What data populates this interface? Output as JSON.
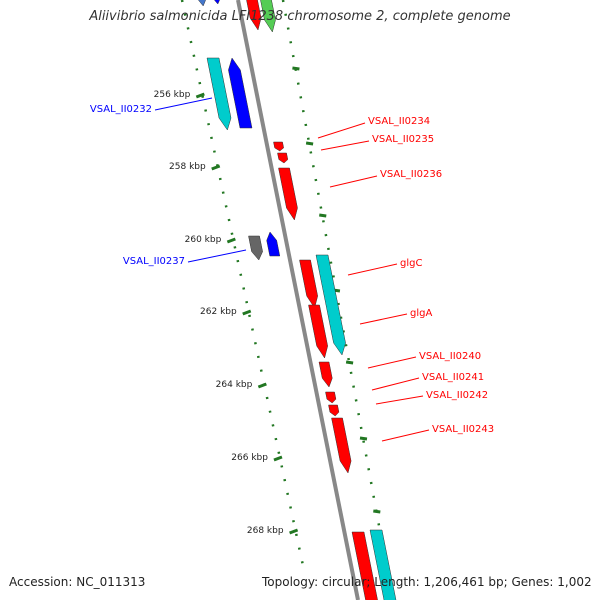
{
  "title": "Aliivibrio salmonicida LFI1238 chromosome 2, complete genome",
  "footer": {
    "accession": "Accession: NC_011313",
    "topology": "Topology: circular; Length: 1,206,461 bp; Genes: 1,002"
  },
  "colors": {
    "red": "#ff0000",
    "blue": "#0000ff",
    "cyan": "#00cccc",
    "gray": "#666666",
    "green": "#22aa22",
    "tick": "#227722",
    "backbone": "#888888"
  },
  "ticks": [
    "256 kbp",
    "258 kbp",
    "260 kbp",
    "262 kbp",
    "264 kbp",
    "266 kbp",
    "268 kbp"
  ],
  "genes": [
    {
      "label": "VSAL_II0232",
      "color": "blue"
    },
    {
      "label": "VSAL_II0234",
      "color": "red"
    },
    {
      "label": "VSAL_II0235",
      "color": "red"
    },
    {
      "label": "VSAL_II0236",
      "color": "red"
    },
    {
      "label": "VSAL_II0237",
      "color": "blue"
    },
    {
      "label": "glgC",
      "color": "red"
    },
    {
      "label": "glgA",
      "color": "red"
    },
    {
      "label": "VSAL_II0240",
      "color": "red"
    },
    {
      "label": "VSAL_II0241",
      "color": "red"
    },
    {
      "label": "VSAL_II0242",
      "color": "red"
    },
    {
      "label": "VSAL_II0243",
      "color": "red"
    }
  ]
}
